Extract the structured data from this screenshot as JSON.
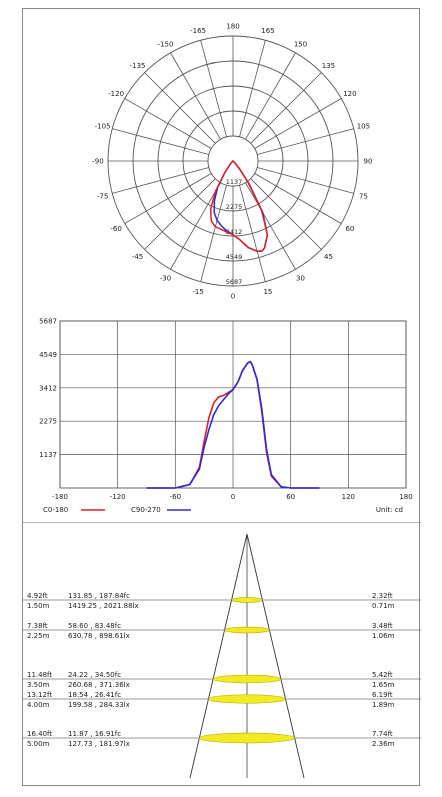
{
  "colors": {
    "c0_180": "#e02020",
    "c90_270": "#2b2bd8",
    "grid": "#555555",
    "ellipse_fill": "#f2ea22",
    "ellipse_stroke": "#b8a800"
  },
  "chart_data": [
    {
      "type": "polar",
      "angle_labels": [
        "-165",
        "180",
        "165",
        "-150",
        "150",
        "-135",
        "135",
        "-120",
        "120",
        "-105",
        "105",
        "-90",
        "90",
        "-75",
        "75",
        "-60",
        "60",
        "-45",
        "45",
        "-30",
        "30",
        "-15",
        "0",
        "15"
      ],
      "radial_labels": [
        "1137",
        "2275",
        "3412",
        "4549",
        "5687"
      ],
      "rmax": 5687,
      "series": [
        {
          "name": "C0-180",
          "color_key": "c0_180",
          "points": [
            [
              -60,
              0
            ],
            [
              -45,
              120
            ],
            [
              -35,
              700
            ],
            [
              -30,
              1600
            ],
            [
              -25,
              2400
            ],
            [
              -20,
              2900
            ],
            [
              -15,
              3100
            ],
            [
              -10,
              3150
            ],
            [
              -5,
              3250
            ],
            [
              0,
              3350
            ],
            [
              5,
              3600
            ],
            [
              10,
              4000
            ],
            [
              15,
              4250
            ],
            [
              18,
              4300
            ],
            [
              20,
              4200
            ],
            [
              25,
              3700
            ],
            [
              30,
              2600
            ],
            [
              35,
              1200
            ],
            [
              40,
              400
            ],
            [
              50,
              40
            ],
            [
              60,
              0
            ]
          ]
        },
        {
          "name": "C90-270",
          "color_key": "c90_270",
          "points": [
            [
              -60,
              0
            ],
            [
              -45,
              120
            ],
            [
              -35,
              650
            ],
            [
              -30,
              1400
            ],
            [
              -25,
              2000
            ],
            [
              -20,
              2500
            ],
            [
              -15,
              2800
            ],
            [
              -10,
              3000
            ],
            [
              -5,
              3200
            ],
            [
              0,
              3350
            ],
            [
              5,
              3600
            ],
            [
              10,
              4000
            ],
            [
              15,
              4250
            ],
            [
              18,
              4300
            ],
            [
              20,
              4200
            ],
            [
              25,
              3700
            ],
            [
              30,
              2700
            ],
            [
              35,
              1300
            ],
            [
              40,
              450
            ],
            [
              50,
              40
            ],
            [
              60,
              0
            ]
          ]
        }
      ]
    },
    {
      "type": "line",
      "x_ticks": [
        "-180",
        "-120",
        "-60",
        "0",
        "60",
        "120",
        "180"
      ],
      "y_ticks": [
        "1137",
        "2275",
        "3412",
        "4549",
        "5687"
      ],
      "xlim": [
        -180,
        180
      ],
      "ylim": [
        0,
        5687
      ],
      "unit_label": "Unit: cd",
      "legend": [
        {
          "name": "C0-180",
          "color_key": "c0_180"
        },
        {
          "name": "C90-270",
          "color_key": "c90_270"
        }
      ],
      "series": [
        {
          "name": "C0-180",
          "color_key": "c0_180",
          "x": [
            -90,
            -60,
            -45,
            -35,
            -30,
            -25,
            -20,
            -15,
            -10,
            -5,
            0,
            5,
            10,
            15,
            18,
            20,
            25,
            30,
            35,
            40,
            50,
            60,
            90
          ],
          "y": [
            0,
            0,
            120,
            700,
            1600,
            2400,
            2900,
            3100,
            3150,
            3250,
            3350,
            3600,
            4000,
            4250,
            4300,
            4200,
            3700,
            2600,
            1200,
            400,
            40,
            0,
            0
          ]
        },
        {
          "name": "C90-270",
          "color_key": "c90_270",
          "x": [
            -90,
            -60,
            -45,
            -35,
            -30,
            -25,
            -20,
            -15,
            -10,
            -5,
            0,
            5,
            10,
            15,
            18,
            20,
            25,
            30,
            35,
            40,
            50,
            60,
            90
          ],
          "y": [
            0,
            0,
            120,
            650,
            1400,
            2000,
            2500,
            2800,
            3000,
            3200,
            3350,
            3600,
            4000,
            4250,
            4300,
            4200,
            3700,
            2700,
            1300,
            450,
            40,
            0,
            0
          ]
        }
      ]
    }
  ],
  "illuminance": {
    "rows": [
      {
        "feet": "4.92ft",
        "fc": "131.85 , 187.84fc",
        "meters": "1.50m",
        "lx": "1419.25 , 2021.88lx",
        "w_ft": "2.32ft",
        "w_m": "0.71m"
      },
      {
        "feet": "7.38ft",
        "fc": "58.60 , 83.48fc",
        "meters": "2.25m",
        "lx": "630.78 , 898.61lx",
        "w_ft": "3.48ft",
        "w_m": "1.06m"
      },
      {
        "feet": "11.48ft",
        "fc": "24.22 , 34.50fc",
        "meters": "3.50m",
        "lx": "260.68 , 371.36lx",
        "w_ft": "5.42ft",
        "w_m": "1.65m"
      },
      {
        "feet": "13.12ft",
        "fc": "18.54 , 26.41fc",
        "meters": "4.00m",
        "lx": "199.58 , 284.33lx",
        "w_ft": "6.19ft",
        "w_m": "1.89m"
      },
      {
        "feet": "16.40ft",
        "fc": "11.87 , 16.91fc",
        "meters": "5.00m",
        "lx": "127.73 , 181.97lx",
        "w_ft": "7.74ft",
        "w_m": "2.36m"
      }
    ]
  }
}
